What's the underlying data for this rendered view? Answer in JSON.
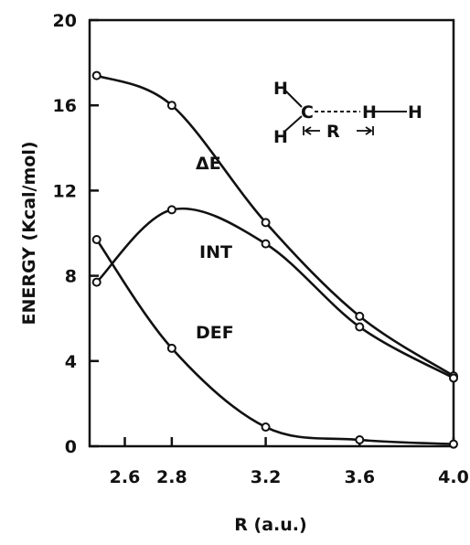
{
  "chart_data": {
    "type": "line",
    "title": "",
    "xlabel": "R (a.u.)",
    "ylabel": "ENERGY (Kcal/mol)",
    "categories": [
      "2.6",
      "2.8",
      "3.2",
      "3.6",
      "4.0"
    ],
    "x_point_positions": [
      2.48,
      2.8,
      3.2,
      3.6,
      4.0
    ],
    "ylim": [
      0,
      20
    ],
    "yticks": [
      0,
      4,
      8,
      12,
      16,
      20
    ],
    "grid": false,
    "series": [
      {
        "name": "ΔE",
        "values": [
          17.4,
          16.0,
          10.5,
          6.1,
          3.3
        ]
      },
      {
        "name": "INT",
        "values": [
          7.7,
          11.1,
          9.5,
          5.6,
          3.2
        ]
      },
      {
        "name": "DEF",
        "values": [
          9.7,
          4.6,
          0.9,
          0.3,
          0.1
        ]
      }
    ],
    "inset": {
      "atoms": [
        "H",
        "H",
        "C",
        "H",
        "H"
      ],
      "distance_label": "R"
    }
  }
}
